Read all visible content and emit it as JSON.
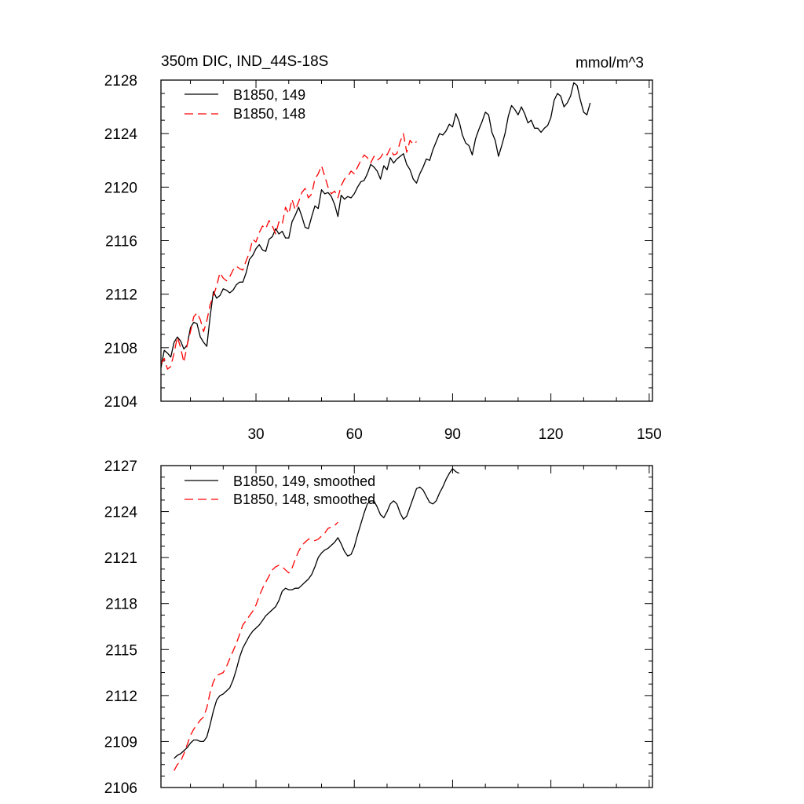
{
  "chart_data": [
    {
      "type": "line",
      "title": "350m DIC, IND_44S-18S",
      "units": "mmol/m^3",
      "xlim": [
        1,
        151
      ],
      "ylim": [
        2104,
        2128
      ],
      "x_ticks": [
        30,
        60,
        90,
        120,
        150
      ],
      "y_ticks": [
        2104,
        2108,
        2112,
        2116,
        2120,
        2124,
        2128
      ],
      "legend_position": "top-left",
      "grid": false,
      "series": [
        {
          "name": "B1850, 149",
          "color": "#000000",
          "dash": "solid",
          "x_start": 1,
          "values": [
            2106.5,
            2107.8,
            2107.6,
            2107.3,
            2108.4,
            2108.8,
            2108.5,
            2107.9,
            2108.2,
            2109.5,
            2109.9,
            2109.8,
            2108.8,
            2108.4,
            2108.1,
            2110.3,
            2112.2,
            2111.7,
            2111.9,
            2112.4,
            2112.3,
            2112.1,
            2112.3,
            2112.7,
            2112.9,
            2112.9,
            2113.6,
            2114.6,
            2114.9,
            2115.4,
            2115.7,
            2115.3,
            2115.2,
            2116.1,
            2116.3,
            2116.9,
            2116.5,
            2116.7,
            2116.2,
            2116.2,
            2117.4,
            2117.9,
            2118.5,
            2117.8,
            2117.0,
            2116.9,
            2117.8,
            2118.6,
            2118.4,
            2119.8,
            2119.5,
            2119.6,
            2119.3,
            2118.7,
            2117.8,
            2119.4,
            2119.1,
            2119.3,
            2119.2,
            2119.5,
            2120.0,
            2120.4,
            2120.5,
            2121.0,
            2121.7,
            2121.5,
            2121.2,
            2120.6,
            2121.6,
            2121.3,
            2122.2,
            2121.8,
            2122.1,
            2122.3,
            2122.5,
            2121.7,
            2121.3,
            2120.6,
            2120.3,
            2121.0,
            2121.5,
            2122.1,
            2122.0,
            2122.8,
            2123.4,
            2124.0,
            2123.9,
            2124.2,
            2124.7,
            2124.5,
            2125.5,
            2124.9,
            2123.9,
            2123.3,
            2123.1,
            2122.4,
            2123.6,
            2124.3,
            2124.9,
            2125.6,
            2125.4,
            2124.1,
            2123.5,
            2122.3,
            2123.1,
            2124.0,
            2125.3,
            2126.1,
            2125.8,
            2125.4,
            2126.0,
            2125.5,
            2124.8,
            2125.0,
            2124.4,
            2124.4,
            2124.1,
            2124.4,
            2124.6,
            2125.2,
            2126.5,
            2127.0,
            2126.8,
            2126.0,
            2126.3,
            2126.8,
            2127.8,
            2127.6,
            2126.5,
            2125.6,
            2125.4,
            2126.3
          ]
        },
        {
          "name": "B1850, 148",
          "color": "#ff0000",
          "dash": "dashed",
          "x_start": 1,
          "values": [
            2106.8,
            2107.2,
            2106.4,
            2106.6,
            2107.6,
            2108.8,
            2108.0,
            2106.9,
            2108.2,
            2109.2,
            2110.3,
            2110.6,
            2110.1,
            2109.2,
            2110.0,
            2111.2,
            2111.9,
            2112.6,
            2113.6,
            2113.2,
            2113.0,
            2113.3,
            2113.8,
            2114.1,
            2113.9,
            2113.8,
            2114.5,
            2115.1,
            2116.1,
            2115.9,
            2116.6,
            2117.1,
            2116.9,
            2117.5,
            2117.1,
            2116.5,
            2117.4,
            2117.2,
            2118.5,
            2118.0,
            2119.1,
            2118.3,
            2118.9,
            2119.6,
            2119.9,
            2119.2,
            2119.5,
            2120.6,
            2121.0,
            2121.6,
            2120.8,
            2120.0,
            2119.5,
            2119.7,
            2119.2,
            2120.1,
            2120.6,
            2120.8,
            2121.2,
            2121.0,
            2121.5,
            2122.0,
            2122.4,
            2122.2,
            2121.8,
            2122.3,
            2122.0,
            2122.2,
            2122.6,
            2122.4,
            2122.9,
            2122.4,
            2122.5,
            2123.4,
            2124.0,
            2122.6,
            2123.5,
            2123.2,
            2123.4
          ]
        }
      ]
    },
    {
      "type": "line",
      "xlim": [
        1,
        151
      ],
      "ylim": [
        2106,
        2127
      ],
      "x_ticks": [
        30,
        60,
        90,
        120,
        150
      ],
      "y_ticks": [
        2106,
        2109,
        2112,
        2115,
        2118,
        2121,
        2124,
        2127
      ],
      "legend_position": "top-left",
      "grid": false,
      "series": [
        {
          "name": "B1850, 149, smoothed",
          "color": "#000000",
          "dash": "solid",
          "x_start": 5,
          "values": [
            2107.9,
            2108.1,
            2108.2,
            2108.4,
            2108.6,
            2108.9,
            2109.1,
            2109.1,
            2109.0,
            2109.0,
            2109.3,
            2110.1,
            2111.0,
            2111.7,
            2112.0,
            2112.1,
            2112.3,
            2112.5,
            2113.0,
            2113.7,
            2114.5,
            2115.1,
            2115.5,
            2115.9,
            2116.2,
            2116.4,
            2116.6,
            2116.9,
            2117.2,
            2117.4,
            2117.6,
            2117.8,
            2118.2,
            2118.8,
            2119.0,
            2118.9,
            2118.9,
            2119.0,
            2119.0,
            2119.2,
            2119.4,
            2119.6,
            2119.9,
            2120.4,
            2121.0,
            2121.3,
            2121.5,
            2121.6,
            2121.8,
            2122.0,
            2122.3,
            2121.9,
            2121.4,
            2121.1,
            2121.2,
            2121.7,
            2122.5,
            2123.2,
            2123.9,
            2124.5,
            2124.7,
            2124.7,
            2124.3,
            2123.8,
            2123.6,
            2124.0,
            2124.5,
            2124.7,
            2124.5,
            2123.9,
            2123.5,
            2123.7,
            2124.3,
            2124.9,
            2125.5,
            2125.6,
            2125.4,
            2125.0,
            2124.6,
            2124.5,
            2124.7,
            2125.2,
            2125.6,
            2126.1,
            2126.5,
            2126.8,
            2126.6,
            2126.5
          ]
        },
        {
          "name": "B1850, 148, smoothed",
          "color": "#ff0000",
          "dash": "dashed",
          "x_start": 5,
          "values": [
            2107.1,
            2107.5,
            2107.7,
            2108.2,
            2108.8,
            2109.4,
            2109.8,
            2110.1,
            2110.4,
            2110.6,
            2111.2,
            2112.2,
            2112.9,
            2113.3,
            2113.4,
            2113.5,
            2113.9,
            2114.4,
            2114.9,
            2115.4,
            2116.0,
            2116.6,
            2116.9,
            2117.2,
            2117.5,
            2117.9,
            2118.5,
            2119.0,
            2119.4,
            2119.8,
            2120.2,
            2120.4,
            2120.5,
            2120.4,
            2120.2,
            2120.0,
            2120.3,
            2120.9,
            2121.4,
            2121.8,
            2122.0,
            2122.2,
            2122.2,
            2122.1,
            2122.2,
            2122.4,
            2122.6,
            2122.9,
            2123.0,
            2123.1,
            2123.3
          ]
        }
      ]
    }
  ]
}
